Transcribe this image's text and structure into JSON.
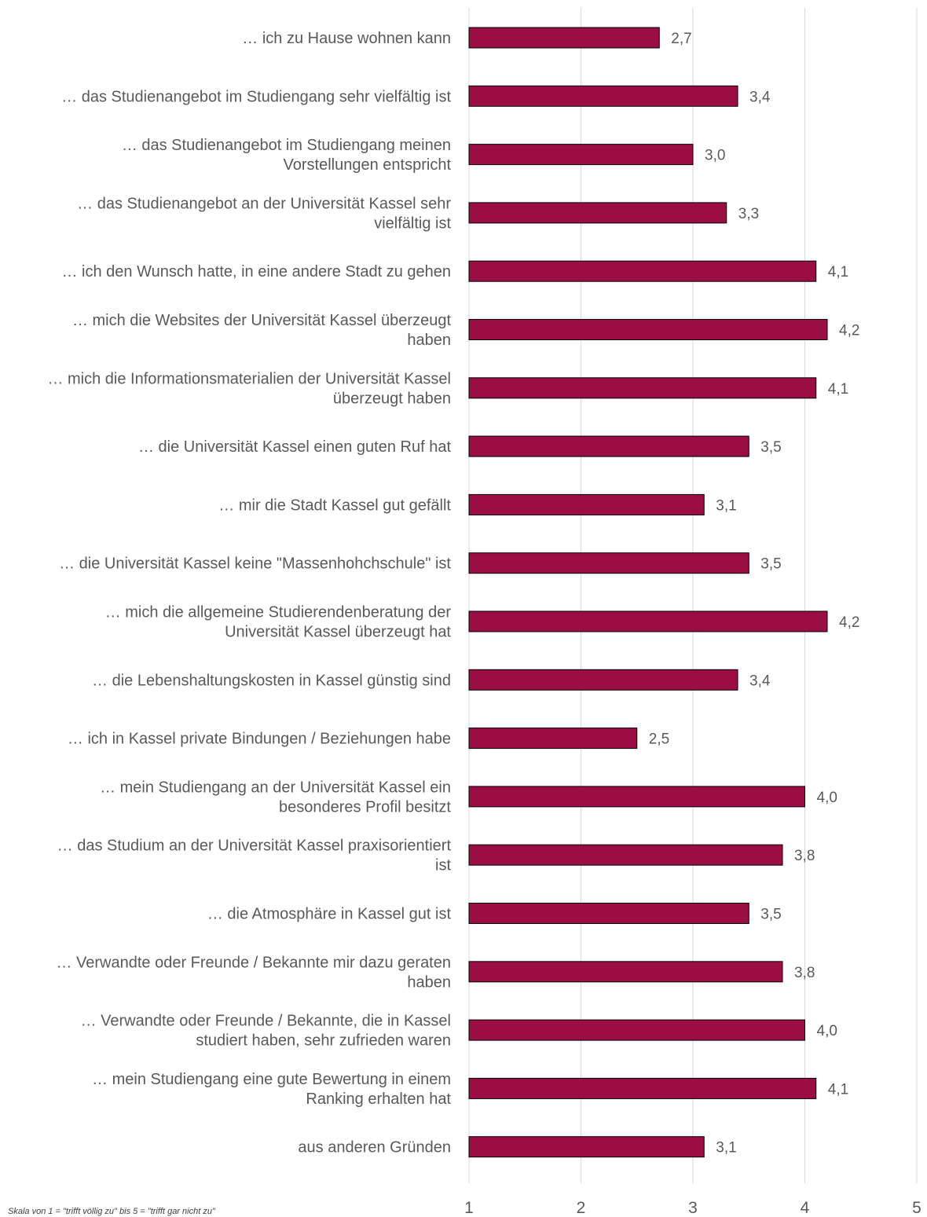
{
  "chart_data": {
    "type": "bar",
    "orientation": "horizontal",
    "categories": [
      [
        "… ich zu Hause wohnen kann"
      ],
      [
        "… das Studienangebot im Studiengang sehr vielfältig ist"
      ],
      [
        "… das Studienangebot im Studiengang meinen",
        "Vorstellungen entspricht"
      ],
      [
        "… das Studienangebot an der Universität Kassel sehr",
        "vielfältig ist"
      ],
      [
        "… ich den Wunsch hatte, in eine andere Stadt zu gehen"
      ],
      [
        "… mich die Websites der Universität Kassel überzeugt",
        "haben"
      ],
      [
        "… mich die Informationsmaterialien der Universität Kassel",
        "überzeugt haben"
      ],
      [
        "… die Universität Kassel einen guten Ruf hat"
      ],
      [
        "… mir die Stadt Kassel gut gefällt"
      ],
      [
        "… die Universität Kassel keine \"Massenhohchschule\" ist"
      ],
      [
        "… mich die allgemeine Studierendenberatung der",
        "Universität Kassel überzeugt hat"
      ],
      [
        "… die Lebenshaltungskosten in Kassel günstig sind"
      ],
      [
        "… ich in Kassel private Bindungen / Beziehungen habe"
      ],
      [
        "… mein Studiengang an der Universität Kassel ein",
        "besonderes Profil besitzt"
      ],
      [
        "… das Studium an der Universität Kassel praxisorientiert",
        "ist"
      ],
      [
        "… die Atmosphäre in Kassel gut ist"
      ],
      [
        "… Verwandte oder Freunde / Bekannte mir dazu geraten",
        "haben"
      ],
      [
        "… Verwandte oder Freunde / Bekannte, die in Kassel",
        "studiert haben, sehr zufrieden waren"
      ],
      [
        "… mein Studiengang eine gute Bewertung in einem",
        "Ranking erhalten hat"
      ],
      [
        "aus anderen Gründen"
      ]
    ],
    "values": [
      2.7,
      3.4,
      3.0,
      3.3,
      4.1,
      4.2,
      4.1,
      3.5,
      3.1,
      3.5,
      4.2,
      3.4,
      2.5,
      4.0,
      3.8,
      3.5,
      3.8,
      4.0,
      4.1,
      3.1
    ],
    "value_labels": [
      "2,7",
      "3,4",
      "3,0",
      "3,3",
      "4,1",
      "4,2",
      "4,1",
      "3,5",
      "3,1",
      "3,5",
      "4,2",
      "3,4",
      "2,5",
      "4,0",
      "3,8",
      "3,5",
      "3,8",
      "4,0",
      "4,1",
      "3,1"
    ],
    "xlim": [
      1,
      5
    ],
    "xticks": [
      1,
      2,
      3,
      4,
      5
    ],
    "xtick_labels": [
      "1",
      "2",
      "3",
      "4",
      "5"
    ],
    "grid": "vertical",
    "title": "",
    "xlabel": "",
    "ylabel": "",
    "bar_color": "#9b0e44",
    "bar_edge_color": "#000000",
    "note": "Skala von 1 = \"trifft völlig zu\" bis 5 = \"trifft gar nicht zu\""
  }
}
